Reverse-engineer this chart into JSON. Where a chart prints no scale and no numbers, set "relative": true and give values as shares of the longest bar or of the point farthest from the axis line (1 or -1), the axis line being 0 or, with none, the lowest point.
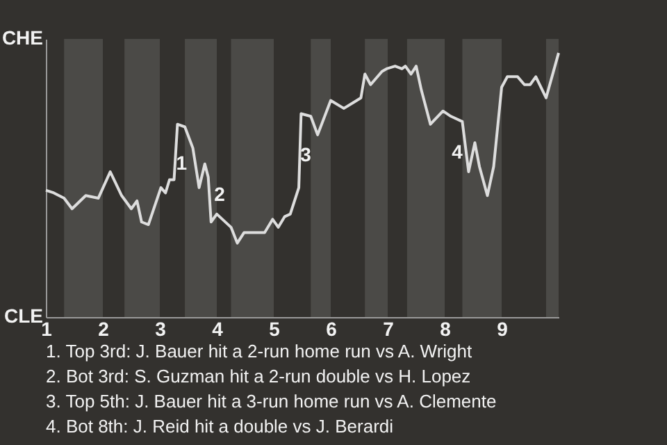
{
  "chart_data": {
    "type": "line",
    "relative": true,
    "x": [
      1,
      1.14,
      1.32,
      1.46,
      1.7,
      1.92,
      2.13,
      2.33,
      2.5,
      2.6,
      2.68,
      2.8,
      3.02,
      3.1,
      3.17,
      3.25,
      3.31,
      3.44,
      3.58,
      3.69,
      3.79,
      3.85,
      3.9,
      4,
      4.25,
      4.36,
      4.48,
      4.84,
      4.98,
      5.08,
      5.19,
      5.29,
      5.44,
      5.48,
      5.65,
      5.77,
      6,
      6.23,
      6.53,
      6.6,
      6.7,
      6.9,
      6.98,
      7.13,
      7.25,
      7.31,
      7.41,
      7.5,
      7.59,
      7.75,
      7.97,
      8.11,
      8.31,
      8.42,
      8.53,
      8.61,
      8.75,
      8.86,
      9,
      9.1,
      9.28,
      9.4,
      9.5,
      9.6,
      9.78,
      10
    ],
    "series": [
      {
        "color": "#dddddd",
        "values": [
          0.48,
          0.47,
          0.45,
          0.41,
          0.46,
          0.45,
          0.55,
          0.46,
          0.41,
          0.44,
          0.36,
          0.35,
          0.49,
          0.47,
          0.52,
          0.52,
          0.73,
          0.72,
          0.64,
          0.49,
          0.58,
          0.53,
          0.36,
          0.39,
          0.34,
          0.28,
          0.32,
          0.32,
          0.37,
          0.34,
          0.38,
          0.39,
          0.49,
          0.77,
          0.76,
          0.69,
          0.82,
          0.79,
          0.83,
          0.92,
          0.88,
          0.93,
          0.94,
          0.95,
          0.94,
          0.95,
          0.92,
          0.95,
          0.86,
          0.73,
          0.78,
          0.76,
          0.74,
          0.55,
          0.66,
          0.57,
          0.46,
          0.57,
          0.87,
          0.91,
          0.91,
          0.88,
          0.88,
          0.91,
          0.83,
          1
        ]
      }
    ],
    "xlim": [
      1,
      10
    ],
    "xticks": [
      1,
      2,
      3,
      4,
      5,
      6,
      7,
      8,
      9
    ],
    "bands": [
      {
        "axis": "x",
        "from": 1.32,
        "to": 2,
        "color": "#4b4a47"
      },
      {
        "axis": "x",
        "from": 2.38,
        "to": 3,
        "color": "#4b4a47"
      },
      {
        "axis": "x",
        "from": 3.44,
        "to": 4,
        "color": "#4b4a47"
      },
      {
        "axis": "x",
        "from": 4.25,
        "to": 5,
        "color": "#4b4a47"
      },
      {
        "axis": "x",
        "from": 5.65,
        "to": 6,
        "color": "#4b4a47"
      },
      {
        "axis": "x",
        "from": 6.6,
        "to": 7,
        "color": "#4b4a47"
      },
      {
        "axis": "x",
        "from": 7.34,
        "to": 8,
        "color": "#4b4a47"
      },
      {
        "axis": "x",
        "from": 8.31,
        "to": 9,
        "color": "#4b4a47"
      },
      {
        "axis": "x",
        "from": 9.78,
        "to": 10,
        "color": "#4b4a47"
      }
    ],
    "annotations": [
      "CHE",
      "CLE",
      {
        "text": "1",
        "x": 3.38,
        "y": 0.58
      },
      {
        "text": "2",
        "x": 4.05,
        "y": 0.46
      },
      {
        "text": "3",
        "x": 5.56,
        "y": 0.61
      },
      {
        "text": "4",
        "x": 8.22,
        "y": 0.62
      },
      "1. Top 3rd: J. Bauer hit a 2-run home run vs A. Wright",
      "2. Bot 3rd: S. Guzman hit a 2-run double vs H. Lopez",
      "3. Top 5th: J. Bauer hit a 3-run home run vs A. Clemente",
      "4. Bot 8th: J. Reid hit a double vs J. Berardi"
    ]
  }
}
